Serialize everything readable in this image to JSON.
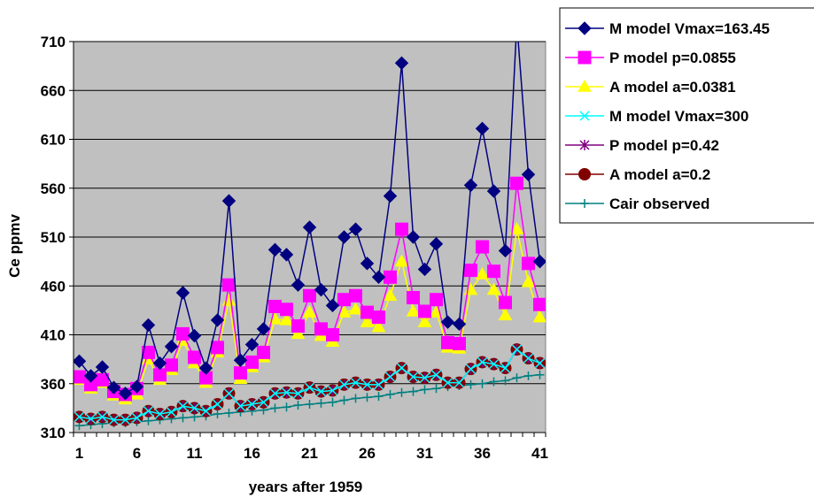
{
  "chart_data": {
    "type": "line",
    "xlabel": "years after 1959",
    "ylabel": "Ce ppmv",
    "xlim": [
      1,
      41
    ],
    "ylim": [
      310,
      710
    ],
    "x_ticks": [
      "1",
      "6",
      "11",
      "16",
      "21",
      "26",
      "31",
      "36",
      "41"
    ],
    "y_ticks": [
      "310",
      "360",
      "410",
      "460",
      "510",
      "560",
      "610",
      "660",
      "710"
    ],
    "grid": "horizontal",
    "plot_background": "#c0c0c0",
    "legend_position": "top-right, outside plot",
    "x": [
      1,
      2,
      3,
      4,
      5,
      6,
      7,
      8,
      9,
      10,
      11,
      12,
      13,
      14,
      15,
      16,
      17,
      18,
      19,
      20,
      21,
      22,
      23,
      24,
      25,
      26,
      27,
      28,
      29,
      30,
      31,
      32,
      33,
      34,
      35,
      36,
      37,
      38,
      39,
      40,
      41
    ],
    "series": [
      {
        "name": "M model Vmax=163.45",
        "color": "#000080",
        "marker": "diamond",
        "values": [
          383,
          368,
          377,
          356,
          350,
          357,
          420,
          381,
          398,
          453,
          409,
          376,
          425,
          547,
          384,
          400,
          416,
          497,
          492,
          461,
          520,
          456,
          440,
          510,
          518,
          483,
          469,
          552,
          688,
          510,
          477,
          503,
          423,
          421,
          563,
          621,
          557,
          496,
          729,
          574,
          485
        ]
      },
      {
        "name": "P model p=0.0855",
        "color": "#ff00ff",
        "marker": "square",
        "values": [
          367,
          359,
          364,
          352,
          349,
          355,
          392,
          369,
          379,
          411,
          387,
          366,
          397,
          461,
          371,
          382,
          392,
          439,
          436,
          419,
          450,
          416,
          410,
          446,
          450,
          433,
          428,
          469,
          518,
          448,
          434,
          446,
          402,
          401,
          476,
          500,
          475,
          443,
          565,
          483,
          441
        ]
      },
      {
        "name": "A model a=0.0381",
        "color": "#ffff00",
        "marker": "triangle",
        "values": [
          364,
          355,
          361,
          348,
          344,
          349,
          385,
          364,
          374,
          404,
          381,
          361,
          392,
          445,
          365,
          377,
          387,
          426,
          425,
          411,
          433,
          409,
          403,
          433,
          436,
          423,
          418,
          450,
          485,
          434,
          423,
          433,
          397,
          396,
          456,
          472,
          456,
          430,
          518,
          464,
          428
        ]
      },
      {
        "name": "M model Vmax=300",
        "color": "#00ffff",
        "marker": "x",
        "values": [
          326,
          324,
          326,
          323,
          323,
          325,
          332,
          329,
          331,
          337,
          335,
          332,
          339,
          350,
          337,
          339,
          341,
          350,
          351,
          350,
          356,
          352,
          353,
          359,
          361,
          359,
          359,
          367,
          376,
          367,
          366,
          369,
          361,
          361,
          375,
          382,
          380,
          376,
          395,
          386,
          381
        ]
      },
      {
        "name": "P model p=0.42",
        "color": "#800080",
        "marker": "star",
        "values": [
          326,
          324,
          326,
          323,
          323,
          325,
          332,
          329,
          331,
          337,
          335,
          332,
          339,
          350,
          337,
          339,
          341,
          350,
          351,
          350,
          356,
          352,
          353,
          359,
          361,
          359,
          359,
          367,
          376,
          367,
          366,
          369,
          361,
          361,
          375,
          382,
          380,
          376,
          395,
          386,
          381
        ]
      },
      {
        "name": "A model a=0.2",
        "color": "#800000",
        "marker": "circle",
        "values": [
          326,
          324,
          326,
          323,
          323,
          325,
          332,
          329,
          331,
          337,
          335,
          332,
          339,
          350,
          337,
          339,
          341,
          350,
          351,
          350,
          356,
          352,
          353,
          359,
          361,
          359,
          359,
          367,
          376,
          367,
          366,
          369,
          361,
          361,
          375,
          382,
          380,
          376,
          395,
          386,
          381
        ]
      },
      {
        "name": "Cair observed",
        "color": "#008080",
        "marker": "plus",
        "values": [
          317,
          318,
          319,
          320,
          320,
          321,
          322,
          323,
          324,
          325,
          326,
          327,
          329,
          330,
          331,
          332,
          333,
          335,
          336,
          338,
          339,
          340,
          341,
          343,
          345,
          346,
          347,
          349,
          351,
          352,
          354,
          355,
          357,
          358,
          359,
          360,
          362,
          363,
          366,
          368,
          369
        ]
      }
    ]
  }
}
